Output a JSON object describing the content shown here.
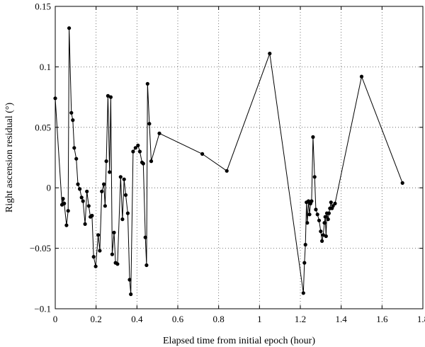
{
  "chart_data": {
    "type": "line",
    "xlabel": "Elapsed time from initial epoch (hour)",
    "ylabel": "Right ascension residual (°)",
    "xlim": [
      0,
      1.8
    ],
    "ylim": [
      -0.1,
      0.15
    ],
    "grid": true,
    "x_ticks": [
      0,
      0.2,
      0.4,
      0.6,
      0.8,
      1,
      1.2,
      1.4,
      1.6,
      1.8
    ],
    "x_tick_labels": [
      "0",
      "0.2",
      "0.4",
      "0.6",
      "0.8",
      "1",
      "1.2",
      "1.4",
      "1.6",
      "1.8"
    ],
    "y_ticks": [
      -0.1,
      -0.05,
      0,
      0.05,
      0.1,
      0.15
    ],
    "y_tick_labels": [
      "−0.1",
      "−0.05",
      "0",
      "0.05",
      "0.1",
      "0.15"
    ],
    "series": [
      {
        "marker": "circle",
        "points": [
          [
            0.0,
            0.074
          ],
          [
            0.033,
            -0.014
          ],
          [
            0.038,
            -0.009
          ],
          [
            0.044,
            -0.013
          ],
          [
            0.055,
            -0.031
          ],
          [
            0.063,
            -0.019
          ],
          [
            0.068,
            0.132
          ],
          [
            0.079,
            0.062
          ],
          [
            0.086,
            0.056
          ],
          [
            0.093,
            0.033
          ],
          [
            0.103,
            0.024
          ],
          [
            0.111,
            0.003
          ],
          [
            0.12,
            -0.001
          ],
          [
            0.129,
            -0.008
          ],
          [
            0.136,
            -0.011
          ],
          [
            0.146,
            -0.03
          ],
          [
            0.155,
            -0.003
          ],
          [
            0.164,
            -0.015
          ],
          [
            0.172,
            -0.024
          ],
          [
            0.18,
            -0.023
          ],
          [
            0.188,
            -0.057
          ],
          [
            0.198,
            -0.065
          ],
          [
            0.21,
            -0.039
          ],
          [
            0.218,
            -0.052
          ],
          [
            0.228,
            -0.003
          ],
          [
            0.238,
            0.003
          ],
          [
            0.244,
            -0.015
          ],
          [
            0.25,
            0.022
          ],
          [
            0.258,
            0.076
          ],
          [
            0.266,
            0.013
          ],
          [
            0.272,
            0.075
          ],
          [
            0.279,
            -0.055
          ],
          [
            0.288,
            -0.037
          ],
          [
            0.295,
            -0.062
          ],
          [
            0.305,
            -0.063
          ],
          [
            0.32,
            0.009
          ],
          [
            0.329,
            -0.026
          ],
          [
            0.337,
            0.007
          ],
          [
            0.345,
            -0.006
          ],
          [
            0.355,
            -0.021
          ],
          [
            0.364,
            -0.076
          ],
          [
            0.37,
            -0.088
          ],
          [
            0.381,
            0.03
          ],
          [
            0.393,
            0.033
          ],
          [
            0.405,
            0.035
          ],
          [
            0.414,
            0.03
          ],
          [
            0.425,
            0.021
          ],
          [
            0.431,
            0.02
          ],
          [
            0.441,
            -0.041
          ],
          [
            0.447,
            -0.064
          ],
          [
            0.452,
            0.086
          ],
          [
            0.461,
            0.053
          ],
          [
            0.47,
            0.022
          ],
          [
            0.51,
            0.045
          ],
          [
            0.72,
            0.028
          ],
          [
            0.84,
            0.014
          ],
          [
            1.05,
            0.111
          ],
          [
            1.215,
            -0.087
          ],
          [
            1.22,
            -0.062
          ],
          [
            1.225,
            -0.047
          ],
          [
            1.23,
            -0.012
          ],
          [
            1.234,
            -0.029
          ],
          [
            1.24,
            -0.011
          ],
          [
            1.245,
            -0.022
          ],
          [
            1.25,
            -0.013
          ],
          [
            1.255,
            -0.011
          ],
          [
            1.262,
            0.042
          ],
          [
            1.27,
            0.009
          ],
          [
            1.276,
            -0.018
          ],
          [
            1.284,
            -0.022
          ],
          [
            1.292,
            -0.027
          ],
          [
            1.3,
            -0.036
          ],
          [
            1.306,
            -0.044
          ],
          [
            1.312,
            -0.039
          ],
          [
            1.318,
            -0.029
          ],
          [
            1.322,
            -0.024
          ],
          [
            1.326,
            -0.04
          ],
          [
            1.33,
            -0.021
          ],
          [
            1.336,
            -0.026
          ],
          [
            1.34,
            -0.021
          ],
          [
            1.345,
            -0.017
          ],
          [
            1.35,
            -0.012
          ],
          [
            1.355,
            -0.017
          ],
          [
            1.36,
            -0.015
          ],
          [
            1.37,
            -0.013
          ],
          [
            1.5,
            0.092
          ],
          [
            1.7,
            0.004
          ]
        ]
      }
    ]
  }
}
